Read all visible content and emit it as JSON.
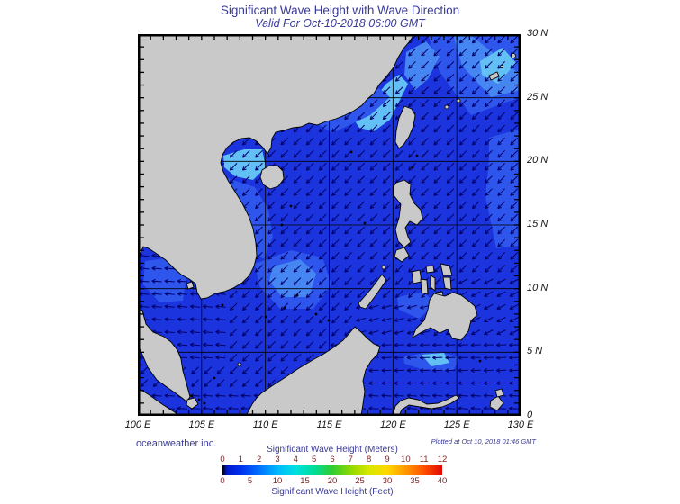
{
  "header": {
    "title": "Significant Wave Height with Wave Direction",
    "subtitle": "Valid For Oct-10-2018 06:00 GMT"
  },
  "axes": {
    "x_labels": [
      "100 E",
      "105 E",
      "110 E",
      "115 E",
      "120 E",
      "125 E",
      "130 E"
    ],
    "y_labels": [
      "30 N",
      "25 N",
      "20 N",
      "15 N",
      "10 N",
      "5 N",
      "0"
    ]
  },
  "footer": {
    "brand": "oceanweather inc.",
    "plotted": "Plotted at Oct 10, 2018 01:46 GMT"
  },
  "colorbar": {
    "title_meters": "Significant Wave Height (Meters)",
    "title_feet": "Significant Wave Height (Feet)",
    "meters_ticks": [
      "0",
      "1",
      "2",
      "3",
      "4",
      "5",
      "6",
      "7",
      "8",
      "9",
      "10",
      "11",
      "12"
    ],
    "feet_ticks": [
      "0",
      "5",
      "10",
      "15",
      "20",
      "25",
      "30",
      "35",
      "40"
    ],
    "gradient": [
      {
        "c": "#000000",
        "p": 0
      },
      {
        "c": "#0018cc",
        "p": 2
      },
      {
        "c": "#0030ee",
        "p": 8.3
      },
      {
        "c": "#0070ff",
        "p": 16.7
      },
      {
        "c": "#00b8ff",
        "p": 25
      },
      {
        "c": "#00e0e0",
        "p": 33.3
      },
      {
        "c": "#00dd99",
        "p": 41.7
      },
      {
        "c": "#30cc30",
        "p": 50
      },
      {
        "c": "#90d800",
        "p": 58.3
      },
      {
        "c": "#d8e800",
        "p": 66.7
      },
      {
        "c": "#ffd800",
        "p": 75
      },
      {
        "c": "#ff9800",
        "p": 83.3
      },
      {
        "c": "#ff5000",
        "p": 91.7
      },
      {
        "c": "#e00800",
        "p": 100
      }
    ]
  },
  "map": {
    "region": "South China Sea and Western Pacific, 100E-130E / 0-30N",
    "colors": {
      "land": "#c9c9c9",
      "coastline": "#000000",
      "ocean": "#1c34dd",
      "grid": "#000000",
      "arrow": "#000066",
      "frame": "#000000",
      "patch_light": "#2e55ec",
      "patch_lighter": "#4586f3",
      "patch_cyan": "#63c0f5"
    }
  }
}
